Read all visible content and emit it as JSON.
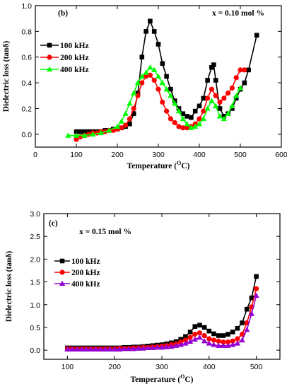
{
  "chart_data": [
    {
      "type": "line",
      "panel_label": "(b)",
      "annotation": "x = 0.10 mol %",
      "xlabel": "Temperature (",
      "xlabel_sup": "O",
      "xlabel_end": "C)",
      "ylabel": "Dielectric loss (tanδ)",
      "xlim": [
        0,
        600
      ],
      "ylim": [
        -0.1,
        1.0
      ],
      "xticks": [
        0,
        100,
        200,
        300,
        400,
        500,
        600
      ],
      "yticks": [
        0.0,
        0.2,
        0.4,
        0.6,
        0.8,
        1.0
      ],
      "ytick_labels": [
        "0.0",
        "0.2",
        "0.4",
        "0.6",
        "0.8",
        "1.0"
      ],
      "legend_position": "upper-left",
      "series": [
        {
          "name": "100 kHz",
          "color": "#000000",
          "marker": "square",
          "points": [
            [
              100,
              0.02
            ],
            [
              110,
              0.02
            ],
            [
              120,
              0.02
            ],
            [
              130,
              0.02
            ],
            [
              140,
              0.02
            ],
            [
              150,
              0.02
            ],
            [
              160,
              0.02
            ],
            [
              170,
              0.03
            ],
            [
              180,
              0.03
            ],
            [
              190,
              0.04
            ],
            [
              200,
              0.04
            ],
            [
              210,
              0.05
            ],
            [
              220,
              0.06
            ],
            [
              230,
              0.08
            ],
            [
              240,
              0.16
            ],
            [
              250,
              0.32
            ],
            [
              260,
              0.6
            ],
            [
              270,
              0.8
            ],
            [
              280,
              0.88
            ],
            [
              290,
              0.8
            ],
            [
              300,
              0.7
            ],
            [
              310,
              0.55
            ],
            [
              320,
              0.45
            ],
            [
              330,
              0.35
            ],
            [
              340,
              0.26
            ],
            [
              350,
              0.2
            ],
            [
              360,
              0.16
            ],
            [
              370,
              0.14
            ],
            [
              380,
              0.13
            ],
            [
              390,
              0.18
            ],
            [
              400,
              0.22
            ],
            [
              410,
              0.28
            ],
            [
              420,
              0.42
            ],
            [
              430,
              0.52
            ],
            [
              435,
              0.54
            ],
            [
              440,
              0.42
            ],
            [
              450,
              0.2
            ],
            [
              460,
              0.14
            ],
            [
              470,
              0.16
            ],
            [
              480,
              0.2
            ],
            [
              490,
              0.28
            ],
            [
              500,
              0.35
            ],
            [
              510,
              0.4
            ],
            [
              520,
              0.5
            ],
            [
              540,
              0.77
            ]
          ]
        },
        {
          "name": "200 kHz",
          "color": "#ff0000",
          "marker": "circle",
          "points": [
            [
              100,
              -0.04
            ],
            [
              110,
              -0.02
            ],
            [
              120,
              -0.01
            ],
            [
              130,
              0.0
            ],
            [
              140,
              0.01
            ],
            [
              150,
              0.01
            ],
            [
              160,
              0.02
            ],
            [
              170,
              0.02
            ],
            [
              180,
              0.03
            ],
            [
              190,
              0.03
            ],
            [
              200,
              0.04
            ],
            [
              210,
              0.05
            ],
            [
              220,
              0.07
            ],
            [
              230,
              0.12
            ],
            [
              240,
              0.2
            ],
            [
              250,
              0.3
            ],
            [
              260,
              0.4
            ],
            [
              270,
              0.45
            ],
            [
              280,
              0.46
            ],
            [
              290,
              0.42
            ],
            [
              300,
              0.35
            ],
            [
              310,
              0.25
            ],
            [
              320,
              0.18
            ],
            [
              330,
              0.12
            ],
            [
              340,
              0.09
            ],
            [
              350,
              0.06
            ],
            [
              360,
              0.05
            ],
            [
              370,
              0.05
            ],
            [
              380,
              0.06
            ],
            [
              390,
              0.08
            ],
            [
              400,
              0.12
            ],
            [
              410,
              0.18
            ],
            [
              420,
              0.28
            ],
            [
              430,
              0.35
            ],
            [
              440,
              0.3
            ],
            [
              450,
              0.25
            ],
            [
              460,
              0.28
            ],
            [
              470,
              0.32
            ],
            [
              480,
              0.36
            ],
            [
              490,
              0.44
            ],
            [
              500,
              0.5
            ],
            [
              510,
              0.5
            ]
          ]
        },
        {
          "name": "400 kHz",
          "color": "#00ff00",
          "marker": "triangle",
          "points": [
            [
              80,
              -0.01
            ],
            [
              100,
              -0.01
            ],
            [
              120,
              -0.01
            ],
            [
              140,
              0.0
            ],
            [
              160,
              0.01
            ],
            [
              180,
              0.03
            ],
            [
              200,
              0.06
            ],
            [
              210,
              0.1
            ],
            [
              220,
              0.16
            ],
            [
              230,
              0.24
            ],
            [
              240,
              0.32
            ],
            [
              250,
              0.4
            ],
            [
              260,
              0.45
            ],
            [
              270,
              0.48
            ],
            [
              280,
              0.52
            ],
            [
              290,
              0.5
            ],
            [
              300,
              0.45
            ],
            [
              310,
              0.4
            ],
            [
              320,
              0.35
            ],
            [
              330,
              0.3
            ],
            [
              340,
              0.24
            ],
            [
              350,
              0.18
            ],
            [
              360,
              0.12
            ],
            [
              370,
              0.08
            ],
            [
              380,
              0.05
            ],
            [
              390,
              0.06
            ],
            [
              400,
              0.08
            ],
            [
              410,
              0.12
            ],
            [
              420,
              0.2
            ],
            [
              430,
              0.26
            ],
            [
              440,
              0.22
            ],
            [
              450,
              0.14
            ],
            [
              460,
              0.12
            ],
            [
              470,
              0.16
            ],
            [
              480,
              0.22
            ],
            [
              490,
              0.3
            ],
            [
              500,
              0.36
            ]
          ]
        }
      ]
    },
    {
      "type": "line",
      "panel_label": "(c)",
      "annotation": "x = 0.15 mol %",
      "xlabel": "Temperature (",
      "xlabel_sup": "O",
      "xlabel_end": "C)",
      "ylabel": "Dielectric loss (tanδ)",
      "xlim": [
        50,
        550
      ],
      "ylim": [
        -0.2,
        3.0
      ],
      "xticks": [
        100,
        200,
        300,
        400,
        500
      ],
      "yticks": [
        0.0,
        0.5,
        1.0,
        1.5,
        2.0,
        2.5,
        3.0
      ],
      "ytick_labels": [
        "0.0",
        "0.5",
        "1.0",
        "1.5",
        "2.0",
        "2.5",
        "3.0"
      ],
      "legend_position": "upper-left",
      "series": [
        {
          "name": "100 kHz",
          "color": "#000000",
          "marker": "square",
          "points": [
            [
              100,
              0.05
            ],
            [
              110,
              0.05
            ],
            [
              120,
              0.05
            ],
            [
              130,
              0.05
            ],
            [
              140,
              0.05
            ],
            [
              150,
              0.05
            ],
            [
              160,
              0.05
            ],
            [
              170,
              0.05
            ],
            [
              180,
              0.05
            ],
            [
              190,
              0.05
            ],
            [
              200,
              0.05
            ],
            [
              210,
              0.05
            ],
            [
              220,
              0.06
            ],
            [
              230,
              0.06
            ],
            [
              240,
              0.07
            ],
            [
              250,
              0.07
            ],
            [
              260,
              0.08
            ],
            [
              270,
              0.09
            ],
            [
              280,
              0.1
            ],
            [
              290,
              0.11
            ],
            [
              300,
              0.12
            ],
            [
              310,
              0.14
            ],
            [
              320,
              0.16
            ],
            [
              330,
              0.19
            ],
            [
              340,
              0.24
            ],
            [
              350,
              0.3
            ],
            [
              360,
              0.4
            ],
            [
              370,
              0.52
            ],
            [
              380,
              0.55
            ],
            [
              390,
              0.5
            ],
            [
              400,
              0.42
            ],
            [
              410,
              0.36
            ],
            [
              420,
              0.32
            ],
            [
              430,
              0.32
            ],
            [
              440,
              0.35
            ],
            [
              450,
              0.4
            ],
            [
              460,
              0.48
            ],
            [
              470,
              0.6
            ],
            [
              480,
              0.9
            ],
            [
              490,
              1.15
            ],
            [
              500,
              1.62
            ]
          ]
        },
        {
          "name": "200 kHz",
          "color": "#ff0000",
          "marker": "circle",
          "points": [
            [
              100,
              0.03
            ],
            [
              110,
              0.03
            ],
            [
              120,
              0.03
            ],
            [
              130,
              0.03
            ],
            [
              140,
              0.03
            ],
            [
              150,
              0.03
            ],
            [
              160,
              0.03
            ],
            [
              170,
              0.03
            ],
            [
              180,
              0.03
            ],
            [
              190,
              0.03
            ],
            [
              200,
              0.03
            ],
            [
              210,
              0.04
            ],
            [
              220,
              0.04
            ],
            [
              230,
              0.04
            ],
            [
              240,
              0.05
            ],
            [
              250,
              0.05
            ],
            [
              260,
              0.06
            ],
            [
              270,
              0.06
            ],
            [
              280,
              0.07
            ],
            [
              290,
              0.08
            ],
            [
              300,
              0.09
            ],
            [
              310,
              0.1
            ],
            [
              320,
              0.12
            ],
            [
              330,
              0.14
            ],
            [
              340,
              0.18
            ],
            [
              350,
              0.22
            ],
            [
              360,
              0.28
            ],
            [
              370,
              0.35
            ],
            [
              380,
              0.38
            ],
            [
              390,
              0.32
            ],
            [
              400,
              0.25
            ],
            [
              410,
              0.22
            ],
            [
              420,
              0.2
            ],
            [
              430,
              0.18
            ],
            [
              440,
              0.18
            ],
            [
              450,
              0.2
            ],
            [
              460,
              0.25
            ],
            [
              470,
              0.35
            ],
            [
              480,
              0.6
            ],
            [
              490,
              0.95
            ],
            [
              500,
              1.35
            ]
          ]
        },
        {
          "name": "400 kHz",
          "color": "#9400d3",
          "marker": "triangle",
          "points": [
            [
              100,
              0.02
            ],
            [
              110,
              0.02
            ],
            [
              120,
              0.02
            ],
            [
              130,
              0.02
            ],
            [
              140,
              0.02
            ],
            [
              150,
              0.02
            ],
            [
              160,
              0.02
            ],
            [
              170,
              0.02
            ],
            [
              180,
              0.02
            ],
            [
              190,
              0.02
            ],
            [
              200,
              0.02
            ],
            [
              210,
              0.02
            ],
            [
              220,
              0.03
            ],
            [
              230,
              0.03
            ],
            [
              240,
              0.03
            ],
            [
              250,
              0.04
            ],
            [
              260,
              0.04
            ],
            [
              270,
              0.05
            ],
            [
              280,
              0.05
            ],
            [
              290,
              0.06
            ],
            [
              300,
              0.06
            ],
            [
              310,
              0.07
            ],
            [
              320,
              0.08
            ],
            [
              330,
              0.1
            ],
            [
              340,
              0.12
            ],
            [
              350,
              0.15
            ],
            [
              360,
              0.19
            ],
            [
              370,
              0.24
            ],
            [
              380,
              0.28
            ],
            [
              390,
              0.2
            ],
            [
              400,
              0.15
            ],
            [
              410,
              0.12
            ],
            [
              420,
              0.1
            ],
            [
              430,
              0.1
            ],
            [
              440,
              0.1
            ],
            [
              450,
              0.12
            ],
            [
              460,
              0.15
            ],
            [
              470,
              0.22
            ],
            [
              480,
              0.45
            ],
            [
              490,
              0.8
            ],
            [
              500,
              1.2
            ]
          ]
        }
      ]
    }
  ]
}
